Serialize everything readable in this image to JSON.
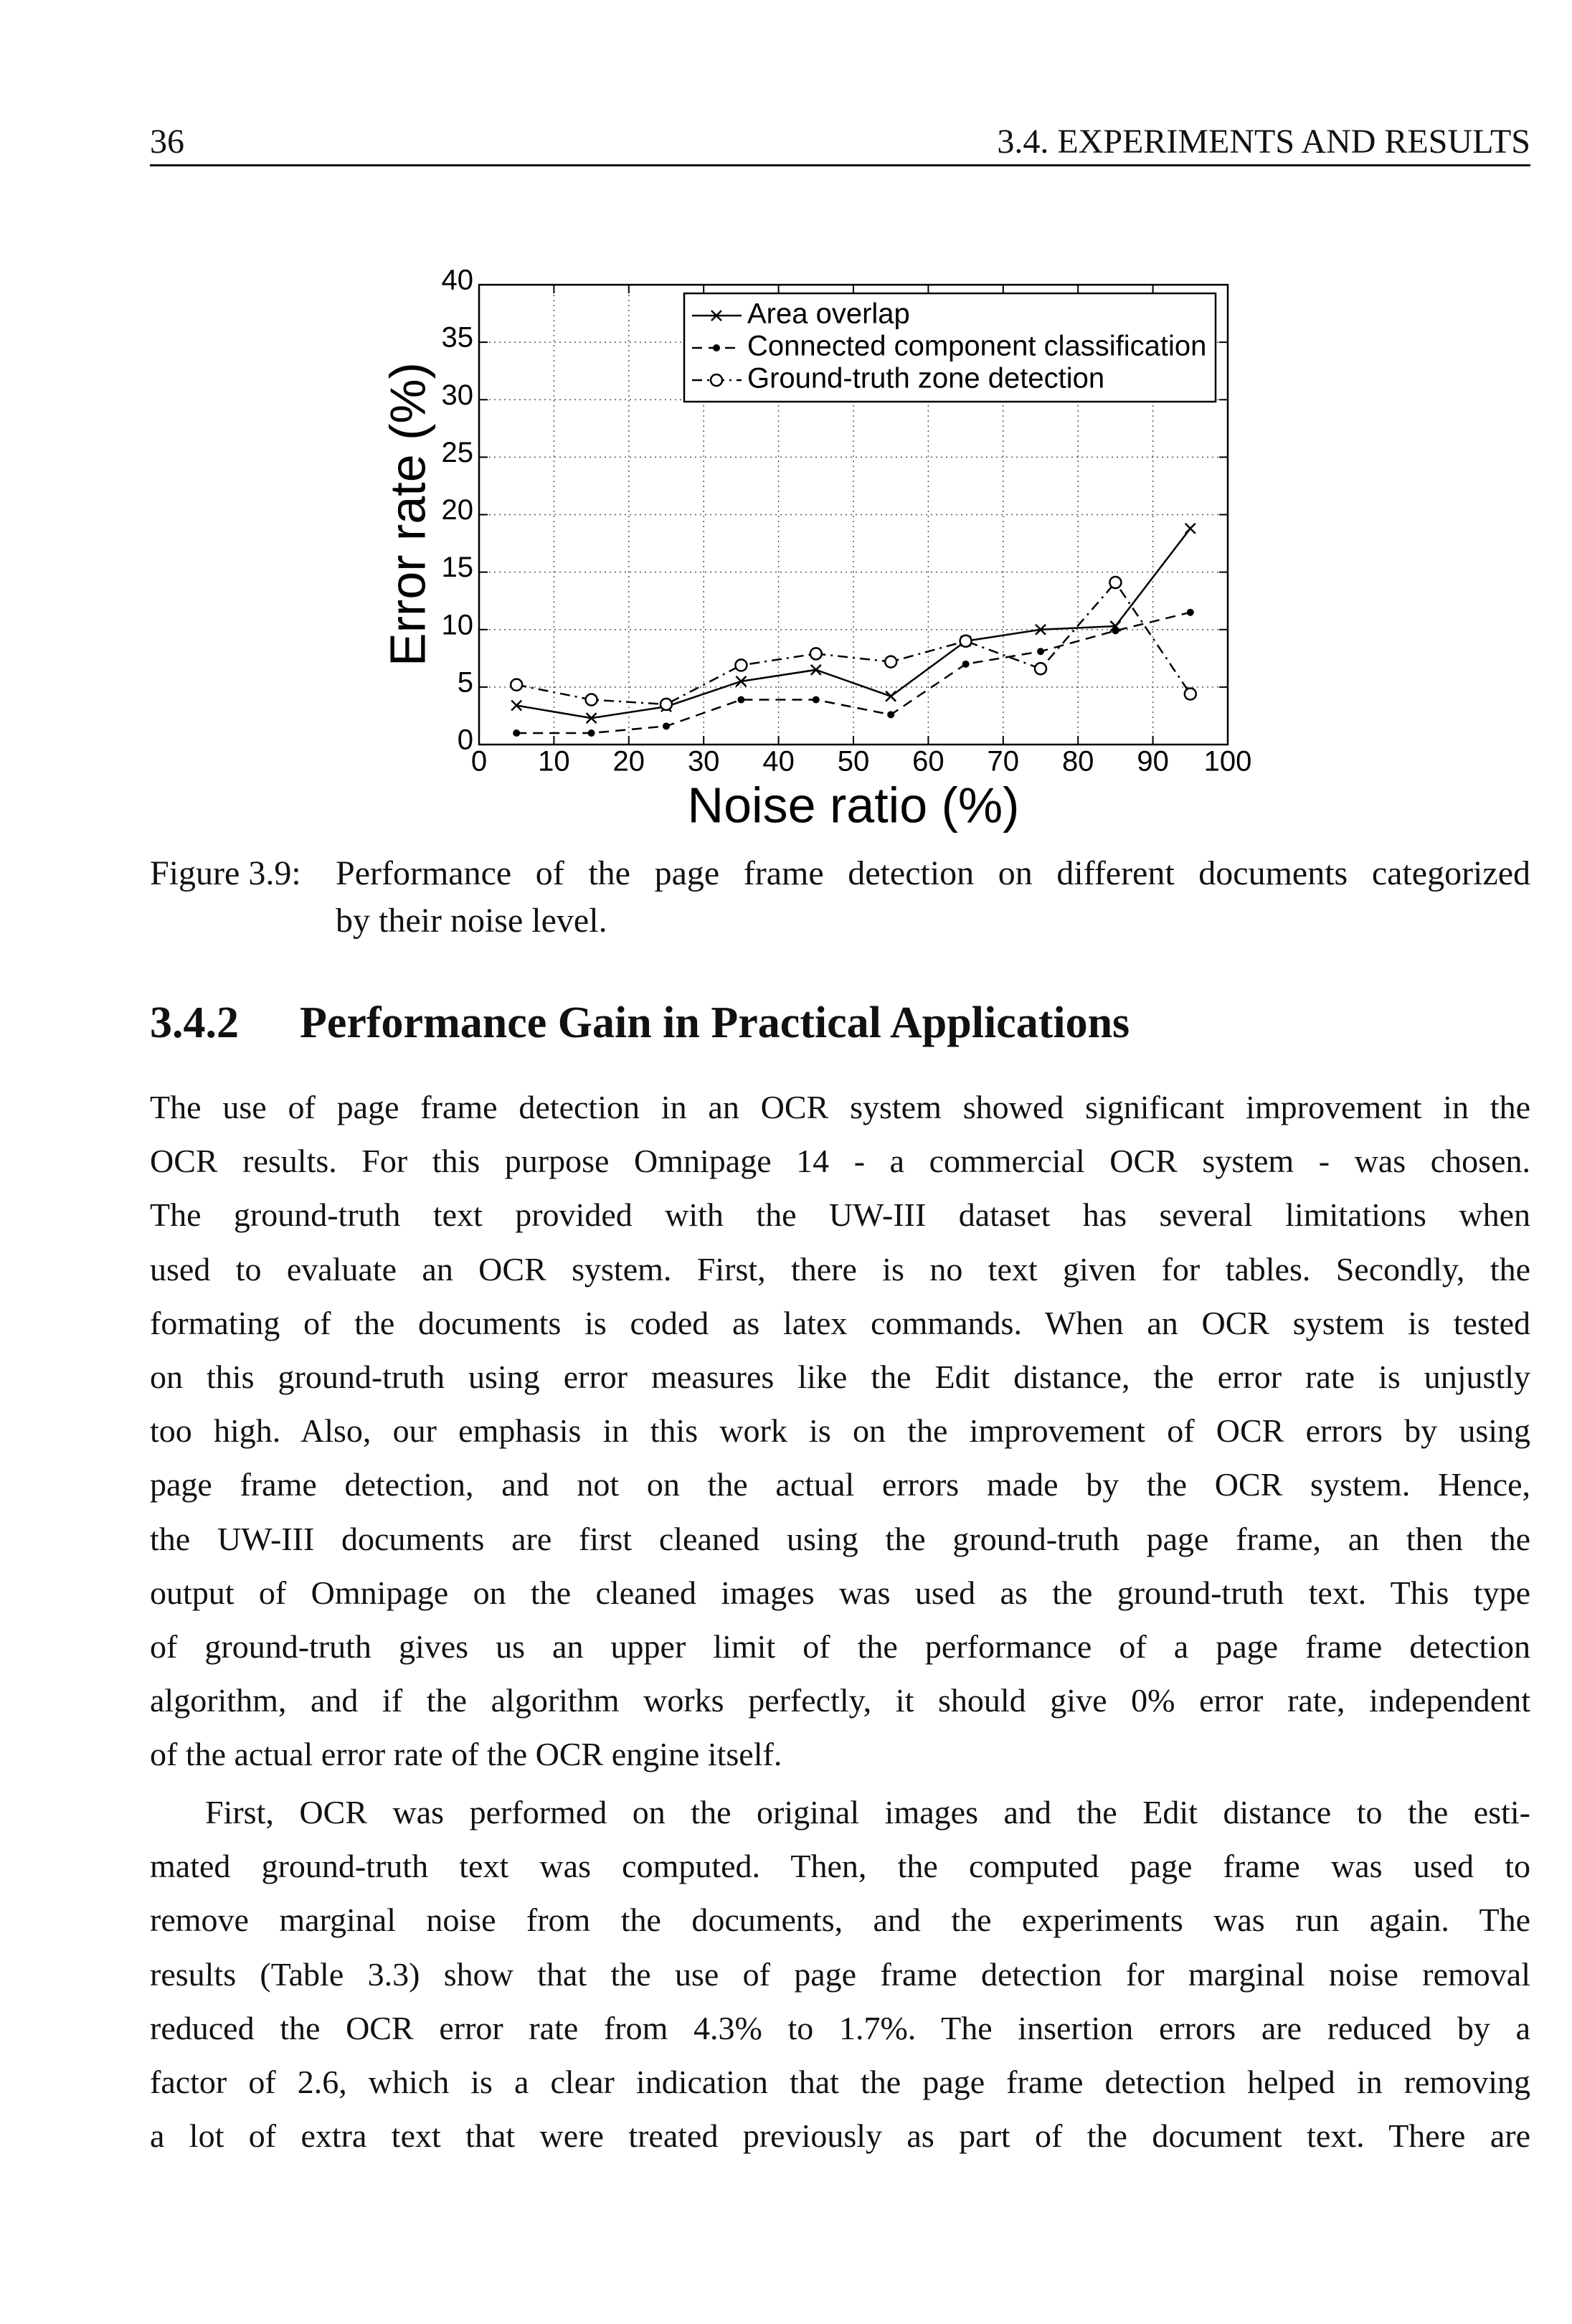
{
  "header": {
    "page_number": "36",
    "running_title": "3.4. EXPERIMENTS AND RESULTS"
  },
  "chart_data": {
    "type": "line",
    "x_label": "Noise ratio (%)",
    "y_label": "Error rate (%)",
    "x": [
      5,
      15,
      25,
      35,
      45,
      55,
      65,
      75,
      85,
      95
    ],
    "series": [
      {
        "name": "Area overlap",
        "color": "#000000",
        "linestyle": "solid",
        "marker": "x",
        "values": [
          3.4,
          2.3,
          3.3,
          5.5,
          6.5,
          4.2,
          9,
          10,
          10.3,
          18.8
        ]
      },
      {
        "name": "Connected component classification",
        "color": "#000000",
        "linestyle": "dashed",
        "marker": "dot",
        "values": [
          1,
          1,
          1.6,
          3.9,
          3.9,
          2.6,
          7,
          8.1,
          9.9,
          11.5
        ]
      },
      {
        "name": "Ground-truth zone detection",
        "color": "#000000",
        "linestyle": "dashdot",
        "marker": "circle",
        "values": [
          5.2,
          3.9,
          3.5,
          6.9,
          7.9,
          7.2,
          9,
          6.6,
          14.1,
          4.4
        ]
      }
    ],
    "xlim": [
      0,
      100
    ],
    "xticks": [
      0,
      10,
      20,
      30,
      40,
      50,
      60,
      70,
      80,
      90,
      100
    ],
    "ylim": [
      0,
      40
    ],
    "yticks": [
      0,
      5,
      10,
      15,
      20,
      25,
      30,
      35,
      40
    ],
    "grid": true,
    "legend": "upper right"
  },
  "caption": {
    "label": "Figure 3.9:",
    "lines": [
      "Performance of the page frame detection on different documents categorized",
      "by their noise level."
    ]
  },
  "section": {
    "number": "3.4.2",
    "title": "Performance Gain in Practical Applications"
  },
  "paragraphs": [
    [
      "The use of page frame detection in an OCR system showed significant improvement in the",
      "OCR results. For this purpose Omnipage 14 - a commercial OCR system - was chosen.",
      "The ground-truth text provided with the UW-III dataset has several limitations when",
      "used to evaluate an OCR system. First, there is no text given for tables. Secondly, the",
      "formating of the documents is coded as latex commands. When an OCR system is tested",
      "on this ground-truth using error measures like the Edit distance, the error rate is unjustly",
      "too high. Also, our emphasis in this work is on the improvement of OCR errors by using",
      "page frame detection, and not on the actual errors made by the OCR system. Hence,",
      "the UW-III documents are first cleaned using the ground-truth page frame, an then the",
      "output of Omnipage on the cleaned images was used as the ground-truth text. This type",
      "of ground-truth gives us an upper limit of the performance of a page frame detection",
      "algorithm, and if the algorithm works perfectly, it should give 0% error rate, independent",
      "of the actual error rate of the OCR engine itself."
    ],
    [
      "First, OCR was performed on the original images and the Edit distance to the esti-",
      "mated ground-truth text was computed. Then, the computed page frame was used to",
      "remove marginal noise from the documents, and the experiments was run again. The",
      "results (Table 3.3) show that the use of page frame detection for marginal noise removal",
      "reduced the OCR error rate from 4.3% to 1.7%. The insertion errors are reduced by a",
      "factor of 2.6, which is a clear indication that the page frame detection helped in removing",
      "a lot of extra text that were treated previously as part of the document text. There are"
    ]
  ]
}
